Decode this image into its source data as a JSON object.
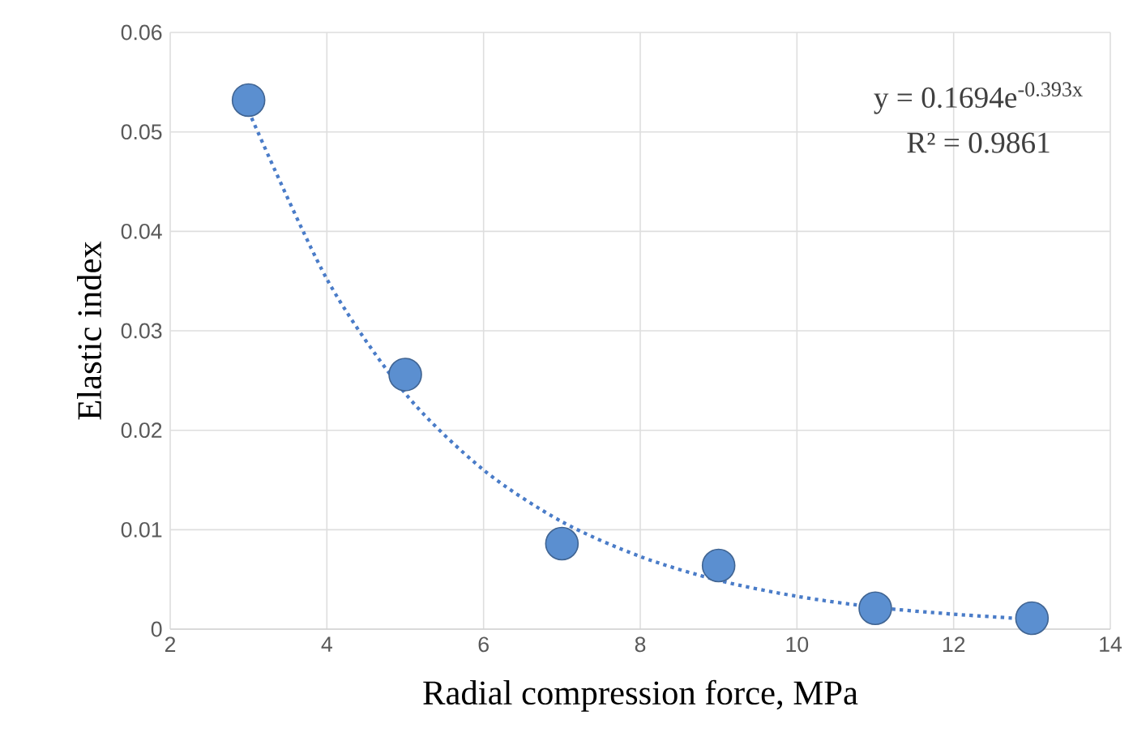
{
  "chart_data": {
    "type": "scatter",
    "xlabel": "Radial compression force, MPa",
    "ylabel": "Elastic index",
    "xlim": [
      2,
      14
    ],
    "xticks": [
      2,
      4,
      6,
      8,
      10,
      12,
      14
    ],
    "ylim": [
      0,
      0.06
    ],
    "yticks": [
      0,
      0.01,
      0.02,
      0.03,
      0.04,
      0.05,
      0.06
    ],
    "grid": true,
    "marker": "circle",
    "series": [
      {
        "color": "#5b8fd0",
        "x": [
          3,
          5,
          7,
          9,
          11,
          13
        ],
        "values": [
          0.0532,
          0.0256,
          0.0086,
          0.0064,
          0.0021,
          0.0011
        ]
      },
      {
        "type": "line",
        "line_style": "dotted",
        "marker": "none",
        "color": "#4a7cc8",
        "x": [
          3,
          4,
          5,
          6,
          7,
          8,
          9,
          10,
          11,
          12,
          13
        ],
        "values": [
          0.0521,
          0.0352,
          0.0237,
          0.016,
          0.0108,
          0.0073,
          0.0049,
          0.0033,
          0.0022,
          0.0015,
          0.001
        ]
      }
    ],
    "annotations": [
      "y = 0.1694e$^{-0.393x}$",
      "R² = 0.9861"
    ]
  }
}
